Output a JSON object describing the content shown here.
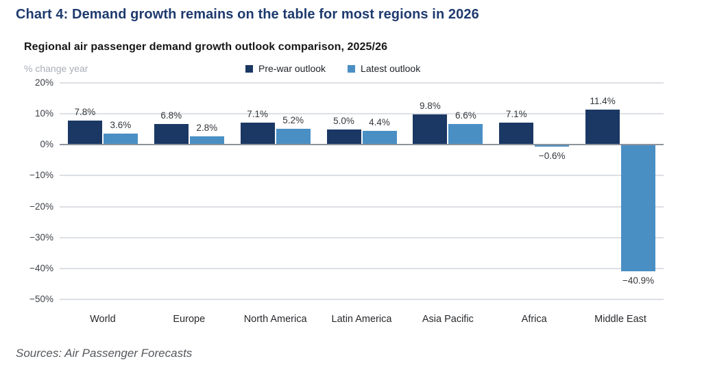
{
  "chart_data": {
    "type": "bar",
    "title": "Chart 4: Demand growth remains on the table for most regions in 2026",
    "subtitle": "Regional air passenger demand growth outlook comparison, 2025/26",
    "ylabel": "% change year",
    "categories": [
      "World",
      "Europe",
      "North America",
      "Latin America",
      "Asia Pacific",
      "Africa",
      "Middle East"
    ],
    "series": [
      {
        "name": "Pre-war outlook",
        "color": "#1b3864",
        "values": [
          7.8,
          6.8,
          7.1,
          5.0,
          9.8,
          7.1,
          11.4
        ]
      },
      {
        "name": "Latest outlook",
        "color": "#4a8fc4",
        "values": [
          3.6,
          2.8,
          5.2,
          4.4,
          6.6,
          -0.6,
          -40.9
        ]
      }
    ],
    "ylim": [
      -50,
      20
    ],
    "ytick_step": 10,
    "grid": true,
    "legend_position": "top"
  },
  "source_note": "Sources: Air Passenger Forecasts",
  "colors": {
    "title": "#1e3a6e",
    "pre_war_bar": "#1b3864",
    "latest_bar": "#4a8fc4",
    "gridline": "#dcdfe4",
    "zero_axis": "#8d939b"
  }
}
